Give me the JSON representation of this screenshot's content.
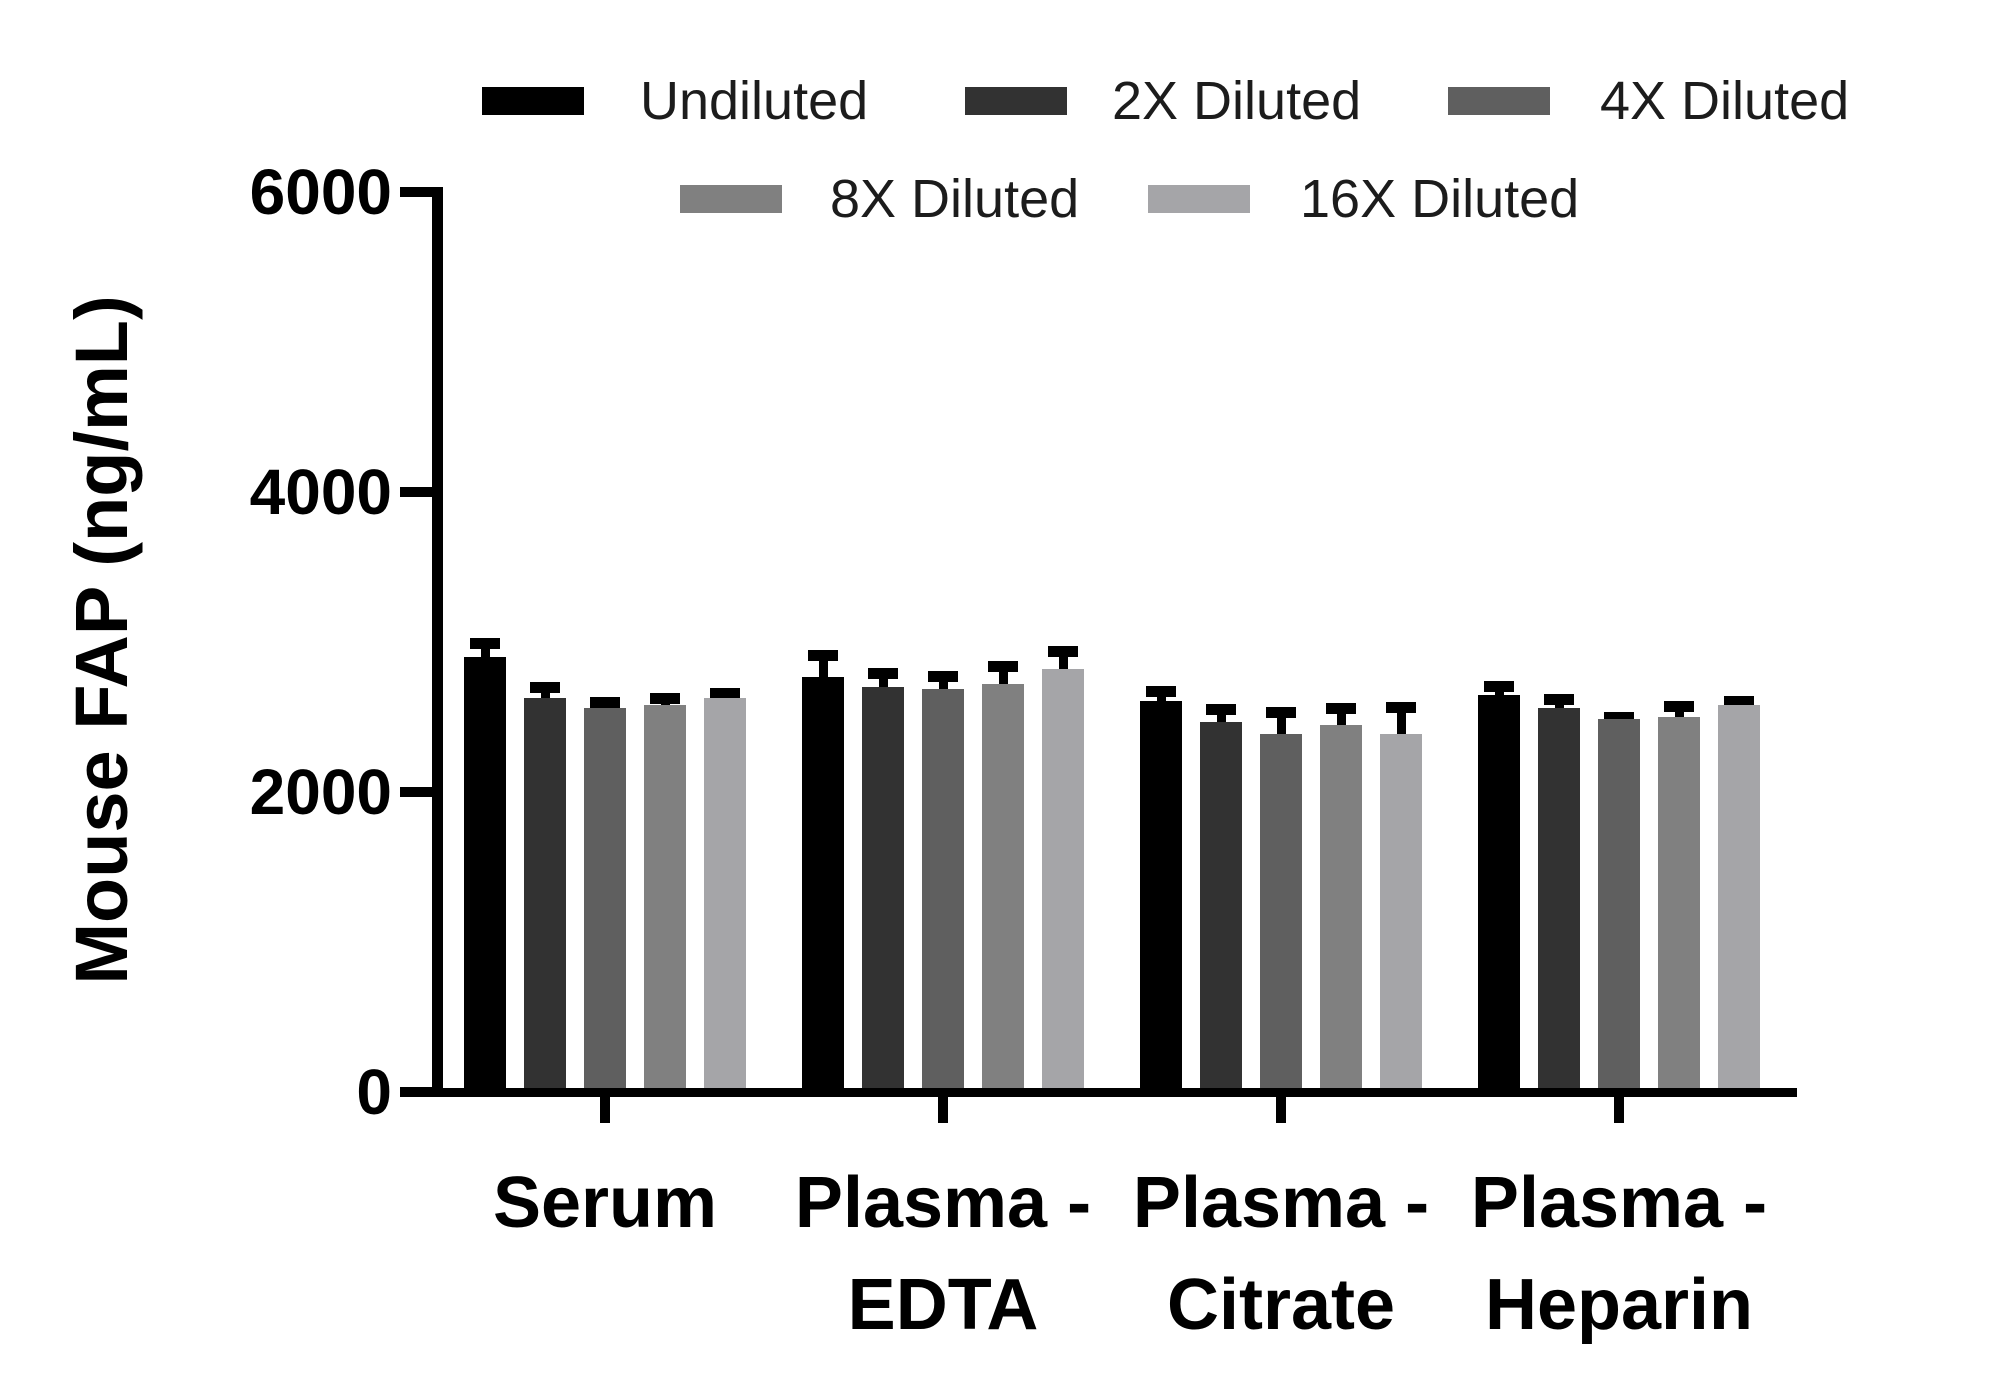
{
  "chart_data": {
    "type": "bar",
    "title": "",
    "xlabel": "",
    "ylabel": "Mouse FAP (ng/mL)",
    "ylim": [
      0,
      6000
    ],
    "yticks": [
      0,
      2000,
      4000,
      6000
    ],
    "grid": false,
    "legend_position": "top",
    "error_bars": "sd-upper-only",
    "categories": [
      "Serum",
      "Plasma - EDTA",
      "Plasma - Citrate",
      "Plasma - Heparin"
    ],
    "category_label_lines": [
      [
        "Serum"
      ],
      [
        "Plasma -",
        "EDTA"
      ],
      [
        "Plasma -",
        "Citrate"
      ],
      [
        "Plasma -",
        "Heparin"
      ]
    ],
    "series": [
      {
        "name": "Undiluted",
        "color": "#000000",
        "values": [
          2900,
          2770,
          2610,
          2650
        ],
        "sd": [
          130,
          175,
          95,
          90
        ]
      },
      {
        "name": "2X Diluted",
        "color": "#323232",
        "values": [
          2630,
          2700,
          2470,
          2560
        ],
        "sd": [
          105,
          125,
          120,
          95
        ]
      },
      {
        "name": "4X Diluted",
        "color": "#5f5f5f",
        "values": [
          2560,
          2690,
          2390,
          2490
        ],
        "sd": [
          75,
          115,
          175,
          45
        ]
      },
      {
        "name": "8X Diluted",
        "color": "#808080",
        "values": [
          2580,
          2720,
          2450,
          2500
        ],
        "sd": [
          80,
          155,
          145,
          105
        ]
      },
      {
        "name": "16X Diluted",
        "color": "#a5a5a8",
        "values": [
          2630,
          2820,
          2390,
          2580
        ],
        "sd": [
          65,
          155,
          210,
          60
        ]
      }
    ]
  }
}
